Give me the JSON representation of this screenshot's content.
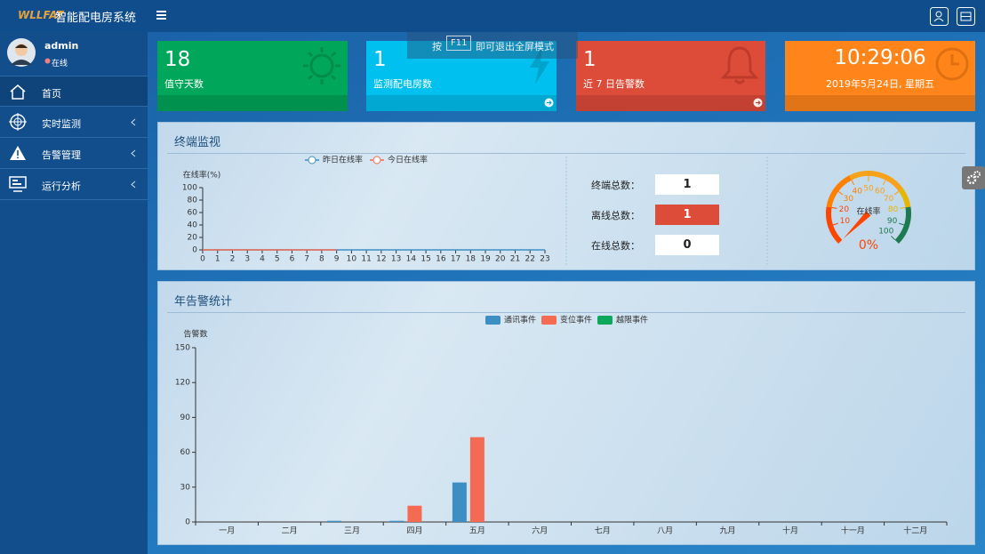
{
  "header": {
    "logo": "WLLFAT",
    "title": "智能配电房系统"
  },
  "fullscreen_hint": {
    "prefix": "按",
    "key": "F11",
    "suffix": "即可退出全屏模式"
  },
  "user": {
    "name": "admin",
    "status": "在线"
  },
  "menu": [
    "首页",
    "实时监测",
    "告警管理",
    "运行分析"
  ],
  "cards": [
    {
      "value": 18,
      "label": "值守天数"
    },
    {
      "value": 1,
      "label": "监测配电房数"
    },
    {
      "value": 1,
      "label": "近 7 日告警数"
    },
    {
      "value": "10:29:06",
      "label": "2019年5月24日, 星期五"
    }
  ],
  "terminal_monitor": {
    "title": "终端监视",
    "chart": {
      "type": "line",
      "y_label": "在线率(%)",
      "x": [
        0,
        1,
        2,
        3,
        4,
        5,
        6,
        7,
        8,
        9,
        10,
        11,
        12,
        13,
        14,
        15,
        16,
        17,
        18,
        19,
        20,
        21,
        22,
        23
      ],
      "xlim": [
        0,
        23
      ],
      "ylim": [
        0,
        100
      ],
      "yticks": [
        0,
        20,
        40,
        60,
        80,
        100
      ],
      "series": [
        {
          "name": "昨日在线率",
          "color": "#3d8ec4",
          "values": [
            0,
            0,
            0,
            0,
            0,
            0,
            0,
            0,
            0,
            0,
            0,
            0,
            0,
            0,
            0,
            0,
            0,
            0,
            0,
            0,
            0,
            0,
            0,
            0
          ]
        },
        {
          "name": "今日在线率",
          "color": "#f46a53",
          "values": [
            0,
            0,
            0,
            0,
            0,
            0,
            0,
            0,
            0,
            0,
            null,
            null,
            null,
            null,
            null,
            null,
            null,
            null,
            null,
            null,
            null,
            null,
            null,
            null
          ]
        }
      ]
    },
    "stats": [
      {
        "label": "终端总数：",
        "value": 1
      },
      {
        "label": "离线总数：",
        "value": 1
      },
      {
        "label": "在线总数：",
        "value": 0
      }
    ],
    "gauge": {
      "type": "gauge",
      "name": "在线率",
      "value": 0,
      "value_label": "0%",
      "min": 0,
      "max": 100,
      "ticks": [
        10,
        20,
        30,
        40,
        50,
        60,
        70,
        80,
        90,
        100
      ]
    }
  },
  "annual_alarms": {
    "title": "年告警统计",
    "chart": {
      "type": "bar",
      "y_label": "告警数",
      "categories": [
        "一月",
        "二月",
        "三月",
        "四月",
        "五月",
        "六月",
        "七月",
        "八月",
        "九月",
        "十月",
        "十一月",
        "十二月"
      ],
      "ylim": [
        0,
        150
      ],
      "yticks": [
        0,
        30,
        60,
        90,
        120,
        150
      ],
      "series": [
        {
          "name": "通讯事件",
          "color": "#3d8ec4",
          "values": [
            0,
            0,
            1,
            1,
            34,
            0,
            0,
            0,
            0,
            0,
            0,
            0
          ]
        },
        {
          "name": "变位事件",
          "color": "#f46a53",
          "values": [
            0,
            0,
            0,
            14,
            73,
            0,
            0,
            0,
            0,
            0,
            0,
            0
          ]
        },
        {
          "name": "越限事件",
          "color": "#0fa75a",
          "values": [
            0,
            0,
            0,
            0,
            0,
            0,
            0,
            0,
            0,
            0,
            0,
            0
          ]
        }
      ]
    }
  }
}
